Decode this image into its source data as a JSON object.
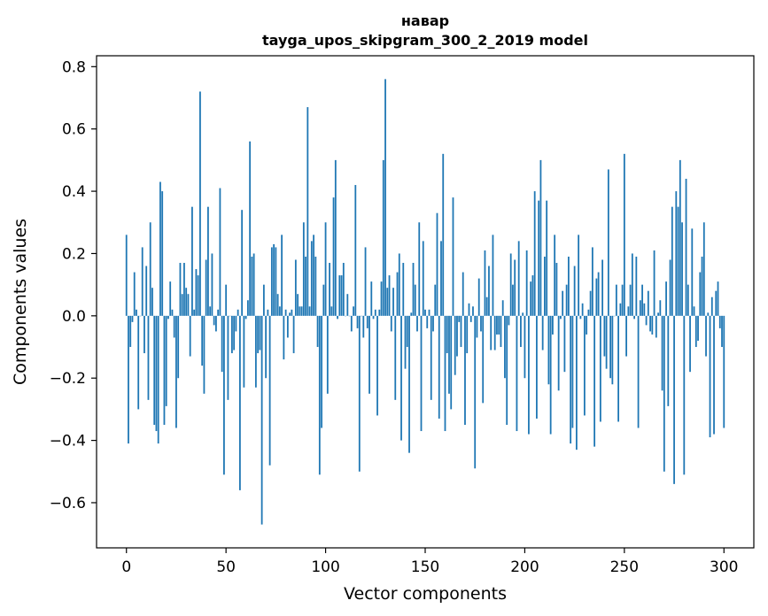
{
  "chart_data": {
    "type": "bar",
    "title": "навар",
    "subtitle": "tayga_upos_skipgram_300_2_2019 model",
    "xlabel": "Vector components",
    "ylabel": "Components values",
    "xlim": [
      -15,
      315
    ],
    "ylim": [
      -0.745,
      0.835
    ],
    "xticks": [
      0,
      50,
      100,
      150,
      200,
      250,
      300
    ],
    "xtick_labels": [
      "0",
      "50",
      "100",
      "150",
      "200",
      "250",
      "300"
    ],
    "yticks": [
      -0.6,
      -0.4,
      -0.2,
      0.0,
      0.2,
      0.4,
      0.6,
      0.8
    ],
    "ytick_labels": [
      "−0.6",
      "−0.4",
      "−0.2",
      "0.0",
      "0.2",
      "0.4",
      "0.6",
      "0.8"
    ],
    "bar_color": "#1f77b4",
    "grid": false,
    "legend": false,
    "values": [
      0.26,
      -0.41,
      -0.1,
      -0.02,
      0.14,
      0.02,
      -0.3,
      0.0,
      0.22,
      -0.12,
      0.16,
      -0.27,
      0.3,
      0.09,
      -0.35,
      -0.37,
      -0.41,
      0.43,
      0.4,
      -0.35,
      -0.29,
      -0.01,
      0.11,
      0.02,
      -0.07,
      -0.36,
      -0.2,
      0.17,
      0.07,
      0.17,
      0.09,
      0.07,
      -0.13,
      0.35,
      0.02,
      0.15,
      0.13,
      0.72,
      -0.16,
      -0.25,
      0.18,
      0.35,
      0.03,
      0.2,
      -0.03,
      -0.05,
      0.02,
      0.41,
      -0.18,
      -0.51,
      0.1,
      -0.27,
      0.0,
      -0.12,
      -0.11,
      -0.05,
      0.02,
      -0.56,
      0.34,
      -0.23,
      -0.01,
      0.05,
      0.56,
      0.19,
      0.2,
      -0.23,
      -0.12,
      -0.11,
      -0.67,
      0.1,
      -0.2,
      0.02,
      -0.48,
      0.22,
      0.23,
      0.22,
      0.07,
      0.03,
      0.26,
      -0.14,
      0.02,
      -0.07,
      0.01,
      0.02,
      -0.12,
      0.18,
      0.07,
      0.03,
      0.03,
      0.3,
      0.19,
      0.67,
      0.03,
      0.24,
      0.26,
      0.19,
      -0.1,
      -0.51,
      -0.36,
      0.1,
      0.3,
      -0.25,
      0.17,
      0.03,
      0.38,
      0.5,
      -0.01,
      0.13,
      0.13,
      0.17,
      0.0,
      0.07,
      0.0,
      -0.05,
      0.03,
      0.42,
      -0.04,
      -0.5,
      0.0,
      -0.07,
      0.22,
      -0.04,
      -0.25,
      0.11,
      -0.01,
      0.02,
      -0.32,
      0.02,
      0.11,
      0.5,
      0.76,
      0.09,
      0.13,
      -0.05,
      0.09,
      -0.27,
      0.14,
      0.2,
      -0.4,
      0.17,
      -0.17,
      -0.1,
      -0.44,
      0.01,
      0.17,
      0.1,
      -0.05,
      0.3,
      -0.37,
      0.24,
      0.02,
      -0.04,
      0.02,
      -0.27,
      -0.05,
      0.1,
      0.33,
      -0.33,
      0.24,
      0.52,
      -0.37,
      -0.12,
      -0.25,
      -0.3,
      0.38,
      -0.19,
      -0.13,
      -0.02,
      -0.1,
      0.14,
      -0.35,
      -0.12,
      0.04,
      -0.02,
      0.03,
      -0.49,
      -0.07,
      0.12,
      -0.05,
      -0.28,
      0.21,
      0.06,
      0.16,
      -0.11,
      0.26,
      -0.11,
      -0.06,
      -0.06,
      -0.1,
      0.05,
      -0.2,
      -0.35,
      -0.03,
      0.2,
      0.1,
      0.18,
      -0.37,
      0.24,
      -0.1,
      0.01,
      -0.2,
      0.21,
      -0.38,
      0.11,
      0.13,
      0.4,
      -0.33,
      0.37,
      0.5,
      -0.11,
      0.19,
      0.37,
      -0.22,
      -0.38,
      -0.06,
      0.26,
      0.17,
      -0.24,
      -0.01,
      0.08,
      -0.18,
      0.1,
      0.19,
      -0.41,
      -0.36,
      0.16,
      -0.43,
      0.26,
      -0.01,
      0.04,
      -0.32,
      -0.06,
      0.02,
      0.08,
      0.22,
      -0.42,
      0.12,
      0.14,
      -0.34,
      0.18,
      -0.13,
      -0.17,
      0.47,
      -0.2,
      -0.22,
      0.0,
      0.1,
      -0.34,
      0.04,
      0.1,
      0.52,
      -0.13,
      0.03,
      0.1,
      0.2,
      -0.01,
      0.19,
      -0.36,
      0.05,
      0.1,
      0.04,
      -0.03,
      0.08,
      -0.05,
      -0.06,
      0.21,
      -0.07,
      0.01,
      0.05,
      -0.24,
      -0.5,
      0.11,
      -0.29,
      0.18,
      0.35,
      -0.54,
      0.4,
      0.35,
      0.5,
      0.3,
      -0.51,
      0.44,
      0.1,
      -0.18,
      0.28,
      0.03,
      -0.1,
      -0.08,
      0.14,
      0.19,
      0.3,
      -0.13,
      0.01,
      -0.39,
      0.06,
      -0.38,
      0.08,
      0.11,
      -0.04,
      -0.1,
      -0.36
    ]
  }
}
